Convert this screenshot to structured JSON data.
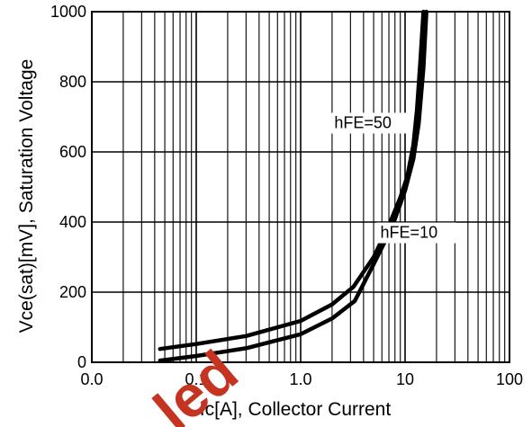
{
  "chart_data": {
    "type": "line",
    "title": "",
    "xlabel": "Ic[A], Collector Current",
    "ylabel": "Vce(sat)[mV], Saturation Voltage",
    "x_scale": "log",
    "xlim": [
      0.01,
      100
    ],
    "ylim": [
      0,
      1000
    ],
    "x_ticks": [
      0.01,
      0.1,
      1,
      10,
      100
    ],
    "x_tick_labels": [
      "0.0",
      "0.1",
      "1.0",
      "10",
      "100"
    ],
    "y_ticks": [
      0,
      200,
      400,
      600,
      800,
      1000
    ],
    "y_tick_labels": [
      "0",
      "200",
      "400",
      "600",
      "800",
      "1000"
    ],
    "grid": true,
    "annotations": [
      "hFE=50",
      "hFE=10"
    ],
    "watermark": "led",
    "series": [
      {
        "name": "hFE=50",
        "x": [
          0.045,
          0.1,
          0.3,
          1,
          2,
          3.2,
          5,
          7,
          9,
          10.5,
          12,
          13,
          14,
          15
        ],
        "y": [
          38,
          52,
          75,
          118,
          165,
          215,
          300,
          390,
          470,
          530,
          620,
          720,
          860,
          1000
        ]
      },
      {
        "name": "hFE=10",
        "x": [
          0.045,
          0.1,
          0.3,
          1,
          2,
          3.3,
          5,
          7.5,
          10,
          12,
          13.5,
          15,
          16
        ],
        "y": [
          5,
          18,
          40,
          80,
          125,
          175,
          280,
          385,
          490,
          580,
          680,
          840,
          1000
        ]
      }
    ]
  }
}
